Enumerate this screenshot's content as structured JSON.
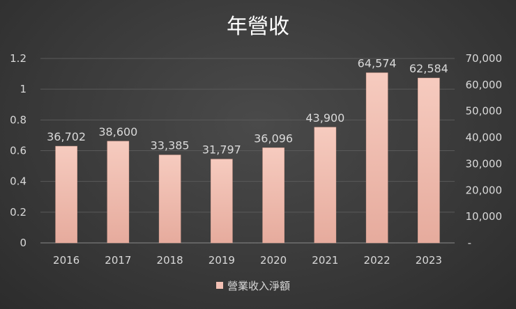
{
  "chart_data": {
    "type": "bar",
    "title": "年營收",
    "categories": [
      "2016",
      "2017",
      "2018",
      "2019",
      "2020",
      "2021",
      "2022",
      "2023"
    ],
    "series": [
      {
        "name": "營業收入淨額",
        "values": [
          36702,
          38600,
          33385,
          31797,
          36096,
          43900,
          64574,
          62584
        ],
        "data_labels": [
          "36,702",
          "38,600",
          "33,385",
          "31,797",
          "36,096",
          "43,900",
          "64,574",
          "62,584"
        ],
        "color": "#f2c0b4",
        "axis": "right"
      }
    ],
    "left_axis": {
      "ylim": [
        0,
        1.2
      ],
      "ticks": [
        "0",
        "0.2",
        "0.4",
        "0.6",
        "0.8",
        "1",
        "1.2"
      ]
    },
    "right_axis": {
      "ylim": [
        0,
        70000
      ],
      "ticks": [
        "-",
        "10,000",
        "20,000",
        "30,000",
        "40,000",
        "50,000",
        "60,000",
        "70,000"
      ]
    },
    "legend": {
      "position": "bottom",
      "label": "營業收入淨額"
    },
    "grid": true
  },
  "colors": {
    "background": "#3a3a3a",
    "bar": "#f2c0b4",
    "bar_edge": "#e3a898",
    "gridline": "#5a5a5a"
  }
}
